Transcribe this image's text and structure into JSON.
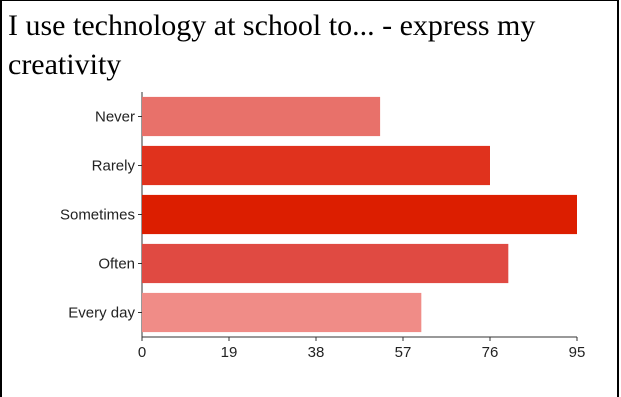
{
  "chart_data": {
    "type": "bar",
    "orientation": "horizontal",
    "title": "I use technology at school to... - express my creativity",
    "categories": [
      "Never",
      "Rarely",
      "Sometimes",
      "Often",
      "Every day"
    ],
    "values": [
      52,
      76,
      95,
      80,
      61
    ],
    "colors": [
      "#e8716a",
      "#e0321d",
      "#dc1e00",
      "#e04a42",
      "#f08c87"
    ],
    "xlim": [
      0,
      95
    ],
    "xticks": [
      "0",
      "19",
      "38",
      "57",
      "76",
      "95"
    ],
    "grid": false,
    "legend": "none"
  }
}
